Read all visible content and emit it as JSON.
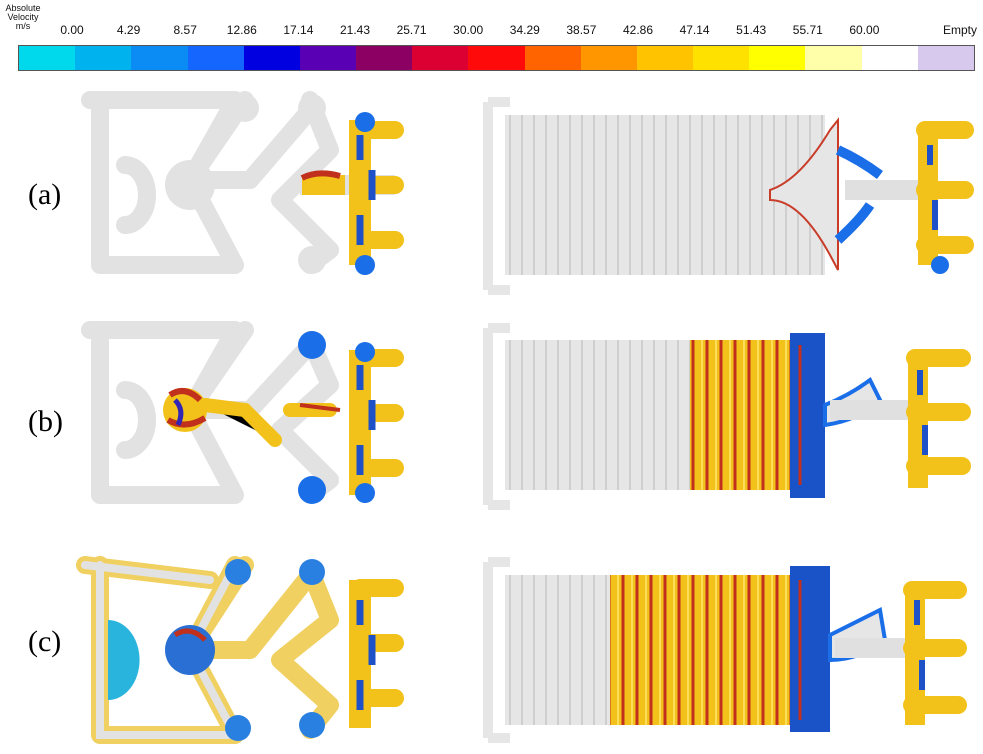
{
  "legend": {
    "title_lines": [
      "Absolute",
      "Velocity",
      "m/s"
    ],
    "ticks": [
      "0.00",
      "4.29",
      "8.57",
      "12.86",
      "17.14",
      "21.43",
      "25.71",
      "30.00",
      "34.29",
      "38.57",
      "42.86",
      "47.14",
      "51.43",
      "55.71",
      "60.00",
      "Empty"
    ],
    "colors": [
      "#00d8ec",
      "#00b2ee",
      "#0a8cf4",
      "#1466ff",
      "#0000e0",
      "#5a00b4",
      "#8c0064",
      "#dc0032",
      "#ff0a0a",
      "#ff6400",
      "#ff9600",
      "#ffc300",
      "#ffe100",
      "#ffff00",
      "#ffffaa",
      "#ffffff",
      "#d7c8ee"
    ]
  },
  "rows": [
    {
      "label": "(a)"
    },
    {
      "label": "(b)"
    },
    {
      "label": "(c)"
    }
  ]
}
